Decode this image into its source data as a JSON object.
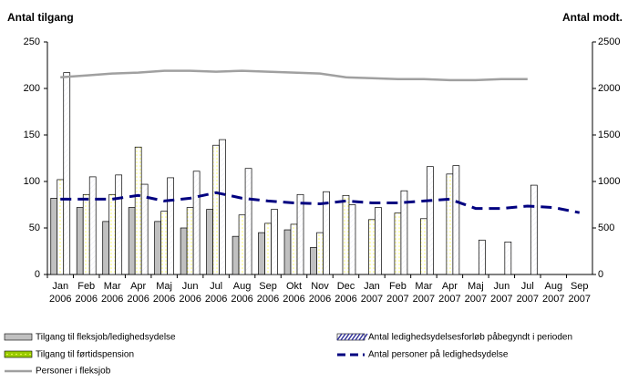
{
  "chart_data": {
    "type": "bar_line",
    "title": "Antal tilgang",
    "y2_title": "Antal modt.",
    "categories": [
      [
        "Jan",
        "2006"
      ],
      [
        "Feb",
        "2006"
      ],
      [
        "Mar",
        "2006"
      ],
      [
        "Apr",
        "2006"
      ],
      [
        "Maj",
        "2006"
      ],
      [
        "Jun",
        "2006"
      ],
      [
        "Jul",
        "2006"
      ],
      [
        "Aug",
        "2006"
      ],
      [
        "Sep",
        "2006"
      ],
      [
        "Okt",
        "2006"
      ],
      [
        "Nov",
        "2006"
      ],
      [
        "Dec",
        "2006"
      ],
      [
        "Jan",
        "2007"
      ],
      [
        "Feb",
        "2007"
      ],
      [
        "Mar",
        "2007"
      ],
      [
        "Apr",
        "2007"
      ],
      [
        "Maj",
        "2007"
      ],
      [
        "Jun",
        "2007"
      ],
      [
        "Jul",
        "2007"
      ],
      [
        "Aug",
        "2007"
      ],
      [
        "Sep",
        "2007"
      ]
    ],
    "series": [
      {
        "name": "Tilgang til fleksjob/ledighedsydelse",
        "kind": "bar",
        "color": "#c0c0c0",
        "values": [
          82,
          72,
          57,
          72,
          57,
          50,
          70,
          41,
          45,
          48,
          29,
          null,
          null,
          null,
          null,
          null,
          null,
          null,
          null,
          null,
          null
        ]
      },
      {
        "name": "Tilgang til førtidspension",
        "kind": "bar",
        "color": "#99cc00",
        "values": [
          102,
          86,
          86,
          137,
          68,
          72,
          139,
          64,
          55,
          54,
          45,
          85,
          59,
          66,
          60,
          108,
          null,
          null,
          null,
          null,
          null
        ]
      },
      {
        "name": "Antal ledighedsydelsesforløb påbegyndt i perioden",
        "kind": "bar",
        "color": "#333399",
        "values": [
          217,
          105,
          107,
          97,
          104,
          111,
          145,
          114,
          70,
          86,
          89,
          75,
          72,
          90,
          116,
          117,
          37,
          35,
          96,
          null,
          null
        ]
      },
      {
        "name": "Antal personer på ledighedsydelse",
        "kind": "dashed-line",
        "axis": "y2",
        "color": "#000080",
        "values": [
          810,
          810,
          810,
          850,
          790,
          820,
          880,
          820,
          790,
          770,
          760,
          790,
          770,
          770,
          790,
          810,
          710,
          710,
          735,
          720,
          665
        ]
      },
      {
        "name": "Personer i fleksjob",
        "kind": "line",
        "axis": "y2",
        "color": "#a0a0a0",
        "values": [
          2120,
          2140,
          2160,
          2170,
          2190,
          2190,
          2180,
          2190,
          2180,
          2170,
          2160,
          2120,
          2110,
          2100,
          2100,
          2090,
          2090,
          2100,
          2100,
          null,
          null
        ]
      }
    ],
    "ylim": [
      0,
      250
    ],
    "yticks": [
      0,
      50,
      100,
      150,
      200,
      250
    ],
    "y2lim": [
      0,
      2500
    ],
    "y2ticks": [
      0,
      500,
      1000,
      1500,
      2000,
      2500
    ]
  }
}
